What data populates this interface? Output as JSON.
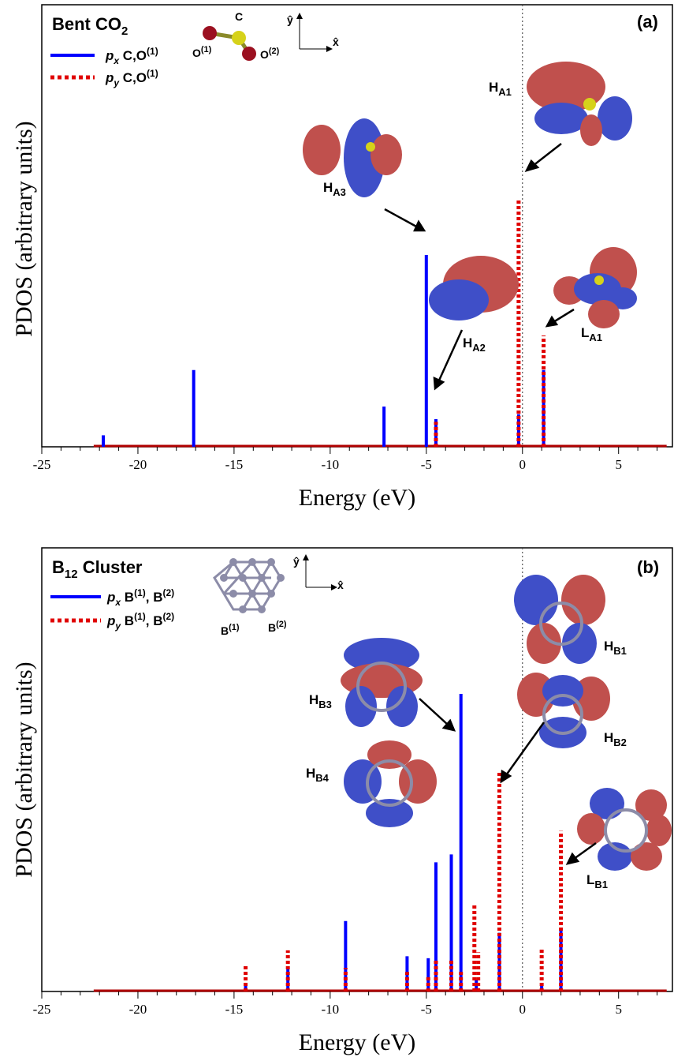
{
  "colors": {
    "px": "#0000ff",
    "py": "#e00000",
    "baseline": "#b00000",
    "orbital_red": "#c0504d",
    "orbital_blue": "#3f4fc8"
  },
  "chart_data": [
    {
      "type": "bar",
      "tag": "(a)",
      "title_main": "Bent CO",
      "title_sub": "2",
      "xlabel": "Energy (eV)",
      "ylabel": "PDOS (arbitrary units)",
      "xlim": [
        -25,
        7.8
      ],
      "ylim": [
        0,
        1.0
      ],
      "xticks": [
        -25,
        -20,
        -15,
        -10,
        -5,
        0,
        5
      ],
      "fermi_level": 0,
      "legend": [
        {
          "style": "solid",
          "color": "#0000ff",
          "name_italic": "p",
          "name_sub": "x",
          "name_rest": " C,O",
          "name_sup": "(1)"
        },
        {
          "style": "dotted",
          "color": "#e00000",
          "name_italic": "p",
          "name_sub": "y",
          "name_rest": " C,O",
          "name_sup": "(1)"
        }
      ],
      "series": [
        {
          "name": "px C,O(1)",
          "style": "solid",
          "color": "#0000ff",
          "x": [
            -21.8,
            -17.1,
            -7.2,
            -5.0,
            -4.5,
            -0.2,
            1.1
          ],
          "values": [
            0.03,
            0.2,
            0.105,
            0.5,
            0.072,
            0.085,
            0.2
          ]
        },
        {
          "name": "py C,O(1)",
          "style": "dotted",
          "color": "#e00000",
          "x": [
            -4.5,
            -0.2,
            1.1
          ],
          "values": [
            0.065,
            0.645,
            0.29
          ]
        }
      ],
      "annotations": [
        {
          "main": "H",
          "sub": "A1"
        },
        {
          "main": "H",
          "sub": "A3"
        },
        {
          "main": "H",
          "sub": "A2"
        },
        {
          "main": "L",
          "sub": "A1"
        }
      ],
      "inset": {
        "atom_c": "C",
        "atom_o1": "O",
        "atom_o1_sup": "(1)",
        "atom_o2": "O",
        "atom_o2_sup": "(2)",
        "axis_y": "ŷ",
        "axis_x": "x̂"
      }
    },
    {
      "type": "bar",
      "tag": "(b)",
      "title_main": "B",
      "title_sub": "12",
      "title_rest": " Cluster",
      "xlabel": "Energy (eV)",
      "ylabel": "PDOS (arbitrary units)",
      "xlim": [
        -25,
        7.8
      ],
      "ylim": [
        0,
        1.0
      ],
      "xticks": [
        -25,
        -20,
        -15,
        -10,
        -5,
        0,
        5
      ],
      "fermi_level": 0,
      "legend": [
        {
          "style": "solid",
          "color": "#0000ff",
          "name_italic": "p",
          "name_sub": "x",
          "name_rest": " B",
          "name_sup": "(1)",
          "name_rest2": ", B",
          "name_sup2": "(2)"
        },
        {
          "style": "dotted",
          "color": "#e00000",
          "name_italic": "p",
          "name_sub": "y",
          "name_rest": " B",
          "name_sup": "(1)",
          "name_rest2": ", B",
          "name_sup2": "(2)"
        }
      ],
      "series": [
        {
          "name": "px B(1), B(2)",
          "style": "solid",
          "color": "#0000ff",
          "x": [
            -14.4,
            -12.2,
            -9.2,
            -6.0,
            -4.9,
            -4.5,
            -3.7,
            -3.2,
            -2.4,
            -1.2,
            1.0,
            2.0
          ],
          "values": [
            0.02,
            0.06,
            0.18,
            0.09,
            0.085,
            0.33,
            0.35,
            0.76,
            0.03,
            0.15,
            0.02,
            0.16
          ]
        },
        {
          "name": "py B(1), B(2)",
          "style": "dotted",
          "color": "#e00000",
          "x": [
            -14.4,
            -12.2,
            -9.2,
            -6.0,
            -4.9,
            -4.5,
            -3.7,
            -3.2,
            -2.5,
            -2.3,
            -1.2,
            1.0,
            2.0
          ],
          "values": [
            0.065,
            0.105,
            0.06,
            0.05,
            0.04,
            0.08,
            0.08,
            0.05,
            0.22,
            0.1,
            0.56,
            0.11,
            0.41
          ]
        }
      ],
      "annotations": [
        {
          "main": "H",
          "sub": "B1"
        },
        {
          "main": "H",
          "sub": "B3"
        },
        {
          "main": "H",
          "sub": "B2"
        },
        {
          "main": "H",
          "sub": "B4"
        },
        {
          "main": "L",
          "sub": "B1"
        }
      ],
      "inset": {
        "atom_b1": "B",
        "atom_b1_sup": "(1)",
        "atom_b2": "B",
        "atom_b2_sup": "(2)",
        "axis_y": "ŷ",
        "axis_x": "x̂"
      }
    }
  ]
}
